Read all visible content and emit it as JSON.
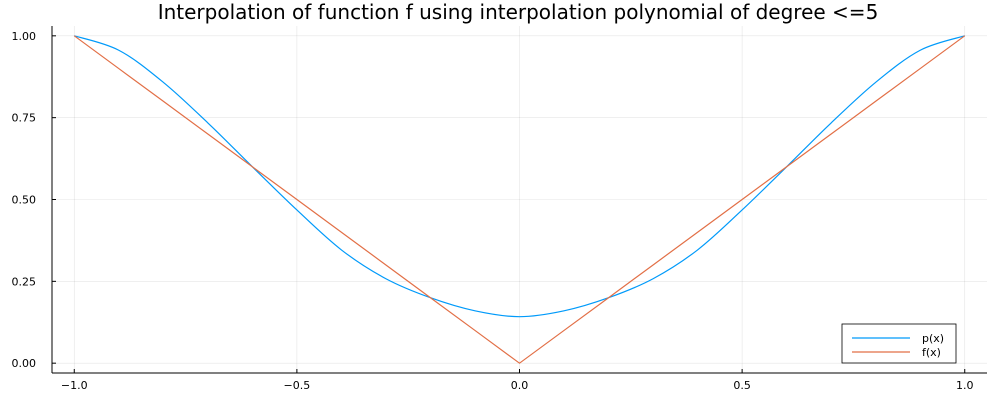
{
  "chart_data": {
    "type": "line",
    "title": "Interpolation of function f using interpolation polynomial of degree <=5",
    "xlabel": "",
    "ylabel": "",
    "xlim": [
      -1.05,
      1.05
    ],
    "ylim": [
      -0.03,
      1.03
    ],
    "grid": true,
    "legend_position": "bottom-right",
    "x_ticks": [
      -1.0,
      -0.5,
      0.0,
      0.5,
      1.0
    ],
    "x_tick_labels": [
      "−1.0",
      "−0.5",
      "0.0",
      "0.5",
      "1.0"
    ],
    "y_ticks": [
      0.0,
      0.25,
      0.5,
      0.75,
      1.0
    ],
    "y_tick_labels": [
      "0.00",
      "0.25",
      "0.50",
      "0.75",
      "1.00"
    ],
    "x": [
      -1.0,
      -0.9,
      -0.8,
      -0.7,
      -0.6,
      -0.5,
      -0.4,
      -0.3,
      -0.2,
      -0.1,
      0.0,
      0.1,
      0.2,
      0.3,
      0.4,
      0.5,
      0.6,
      0.7,
      0.8,
      0.9,
      1.0
    ],
    "series": [
      {
        "name": "p(x)",
        "color": "#009AFA",
        "values": [
          1.0,
          0.956,
          0.858,
          0.734,
          0.6,
          0.468,
          0.346,
          0.258,
          0.2,
          0.16,
          0.142,
          0.16,
          0.2,
          0.258,
          0.346,
          0.468,
          0.6,
          0.734,
          0.858,
          0.956,
          1.0
        ]
      },
      {
        "name": "f(x)",
        "color": "#E26F46",
        "values": [
          1.0,
          0.9,
          0.8,
          0.7,
          0.6,
          0.5,
          0.4,
          0.3,
          0.2,
          0.1,
          0.0,
          0.1,
          0.2,
          0.3,
          0.4,
          0.5,
          0.6,
          0.7,
          0.8,
          0.9,
          1.0
        ]
      }
    ]
  }
}
